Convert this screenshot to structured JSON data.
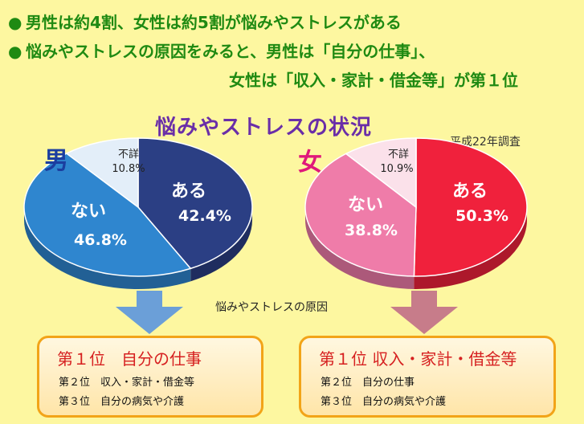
{
  "bullets": {
    "dot": "●",
    "line1": "男性は約4割、女性は約5割が悩みやストレスがある",
    "line2": "悩みやストレスの原因をみると、男性は「自分の仕事」、",
    "line3": "女性は「収入・家計・借金等」が第１位"
  },
  "colors": {
    "title": "#6a2ea8",
    "bullet_text": "#1f8a12",
    "male_label": "#1b3ea0",
    "female_label": "#e0197a",
    "box_border": "#f2a418",
    "rank1_text": "#d62020",
    "arrow_male": "#6b9fd8",
    "arrow_female": "#c77c8a"
  },
  "chart_data": [
    {
      "type": "pie",
      "title": "悩みやストレスの状況",
      "note": "平成22年調査",
      "group": "男",
      "slices": [
        {
          "label": "ある",
          "value": 42.4,
          "value_label": "42.4%",
          "color": "#2b3f84"
        },
        {
          "label": "ない",
          "value": 46.8,
          "value_label": "46.8%",
          "color": "#2f86cf"
        },
        {
          "label": "不詳",
          "value": 10.8,
          "value_label": "10.8%",
          "color": "#e3eef9"
        }
      ]
    },
    {
      "type": "pie",
      "title": "悩みやストレスの状況",
      "note": "平成22年調査",
      "group": "女",
      "slices": [
        {
          "label": "ある",
          "value": 50.3,
          "value_label": "50.3%",
          "color": "#f0213c"
        },
        {
          "label": "ない",
          "value": 38.8,
          "value_label": "38.8%",
          "color": "#ef7ca9"
        },
        {
          "label": "不詳",
          "value": 10.9,
          "value_label": "10.9%",
          "color": "#fbe1ea"
        }
      ]
    }
  ],
  "cause_label": "悩みやストレスの原因",
  "male_causes": {
    "rank1": "第１位　自分の仕事",
    "rank2": "第２位　収入・家計・借金等",
    "rank3": "第３位　自分の病気や介護"
  },
  "female_causes": {
    "rank1": "第１位 収入・家計・借金等",
    "rank2": "第２位　自分の仕事",
    "rank3": "第３位　自分の病気や介護"
  }
}
